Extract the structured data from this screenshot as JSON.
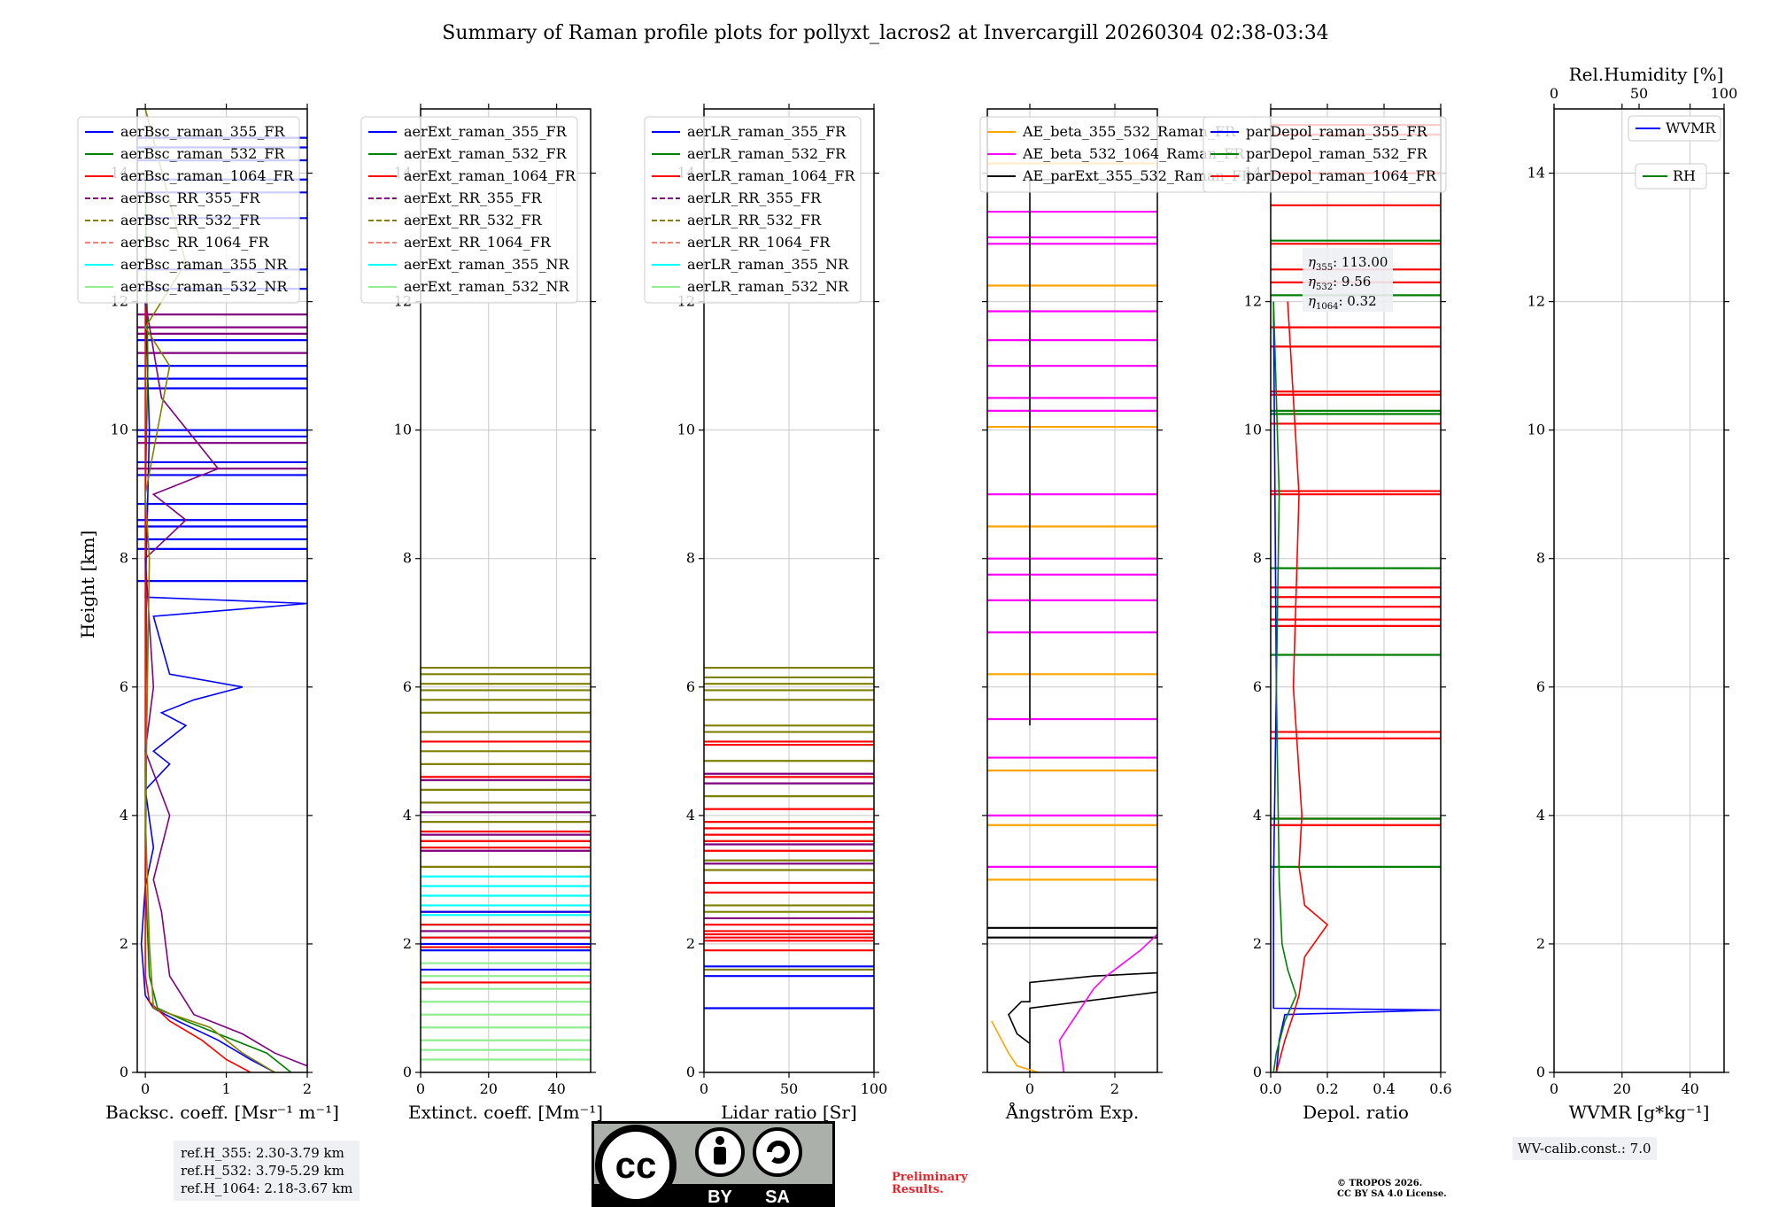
{
  "title": "Summary of Raman profile plots for pollyxt_lacros2 at Invercargill 20260304 02:38-03:34",
  "ylabel": "Height [km]",
  "ref_heights": [
    "ref.H_355: 2.30-3.79 km",
    "ref.H_532: 3.79-5.29 km",
    "ref.H_1064: 2.18-3.67 km"
  ],
  "wv_calib": "WV-calib.const.: 7.0",
  "preliminary": [
    "Preliminary",
    "Results."
  ],
  "copyright": [
    "© TROPOS 2026.",
    "CC BY SA 4.0 License."
  ],
  "license_badge": {
    "by": "BY",
    "sa": "SA",
    "cc": "cc"
  },
  "eta_labels": [
    {
      "sub": "355",
      "value": ": 113.00"
    },
    {
      "sub": "532",
      "value": ": 9.56"
    },
    {
      "sub": "1064",
      "value": ": 0.32"
    }
  ],
  "colors": {
    "blue": "#0000ff",
    "green": "#008000",
    "red": "#ff0000",
    "purple": "#800080",
    "olive": "#808000",
    "salmon": "#fa8072",
    "cyan": "#00ffff",
    "lightgreen": "#90ee90",
    "orange": "#ffa500",
    "magenta": "#ff00ff",
    "black": "#000000"
  },
  "chart_data": [
    {
      "type": "line",
      "id": "backscatter",
      "xlabel": "Backsc. coeff. [Msr⁻¹ m⁻¹]",
      "xlim": [
        -0.1,
        2
      ],
      "ylim": [
        0,
        15
      ],
      "xticks": [
        0,
        1,
        2
      ],
      "xticklabels": [
        "0",
        "1",
        "2"
      ],
      "yticks": [
        0,
        2,
        4,
        6,
        8,
        10,
        12,
        14
      ],
      "legend": [
        {
          "name": "aerBsc_raman_355_FR",
          "color": "blue",
          "dash": false
        },
        {
          "name": "aerBsc_raman_532_FR",
          "color": "green",
          "dash": false
        },
        {
          "name": "aerBsc_raman_1064_FR",
          "color": "red",
          "dash": false
        },
        {
          "name": "aerBsc_RR_355_FR",
          "color": "purple",
          "dash": true
        },
        {
          "name": "aerBsc_RR_532_FR",
          "color": "olive",
          "dash": true
        },
        {
          "name": "aerBsc_RR_1064_FR",
          "color": "salmon",
          "dash": true
        },
        {
          "name": "aerBsc_raman_355_NR",
          "color": "cyan",
          "dash": false
        },
        {
          "name": "aerBsc_raman_532_NR",
          "color": "lightgreen",
          "dash": false
        }
      ],
      "series": [
        {
          "name": "aerBsc_raman_355_FR",
          "color": "blue",
          "x": [
            1.6,
            1.3,
            0.9,
            0.4,
            0.1,
            0.0,
            -0.05,
            0.0,
            0.1,
            0.0,
            0.3,
            0.1,
            0.5,
            0.2,
            0.6,
            1.2,
            0.3,
            0.1,
            2.0,
            0.0,
            0.05,
            0.0
          ],
          "y": [
            0.0,
            0.2,
            0.5,
            0.8,
            1.0,
            1.2,
            2.0,
            2.9,
            3.5,
            4.4,
            4.8,
            5.0,
            5.4,
            5.6,
            5.8,
            6.0,
            6.2,
            7.1,
            7.3,
            7.4,
            10.0,
            12.0
          ]
        },
        {
          "name": "aerBsc_raman_532_FR",
          "color": "green",
          "x": [
            1.8,
            1.5,
            0.9,
            0.5,
            0.15,
            0.05,
            0.0,
            0.02,
            0.0,
            0.03,
            0.0
          ],
          "y": [
            0.0,
            0.3,
            0.6,
            0.8,
            1.0,
            1.5,
            3.0,
            6.0,
            9.0,
            11.0,
            14.0
          ]
        },
        {
          "name": "aerBsc_raman_1064_FR",
          "color": "red",
          "x": [
            1.3,
            1.0,
            0.7,
            0.3,
            0.05,
            0.0,
            0.0
          ],
          "y": [
            0.0,
            0.2,
            0.5,
            0.8,
            1.1,
            1.5,
            12.0
          ]
        },
        {
          "name": "aerBsc_RR_355_FR",
          "color": "purple",
          "x": [
            2.0,
            1.6,
            1.2,
            0.6,
            0.3,
            0.2,
            0.1,
            0.3,
            0.0,
            0.1,
            0.0,
            0.5,
            0.1,
            0.9,
            0.2,
            0.0
          ],
          "y": [
            0.1,
            0.3,
            0.6,
            0.9,
            1.5,
            2.5,
            3.0,
            4.0,
            5.0,
            6.0,
            8.0,
            8.6,
            9.0,
            9.4,
            10.5,
            12.0
          ]
        },
        {
          "name": "aerBsc_RR_532_FR",
          "color": "olive",
          "x": [
            1.6,
            1.2,
            0.8,
            0.1,
            0.05,
            0.0,
            0.05,
            0.0,
            0.3,
            0.0,
            0.5,
            0.0
          ],
          "y": [
            0.0,
            0.3,
            0.7,
            1.0,
            2.0,
            4.0,
            8.0,
            9.0,
            11.0,
            11.6,
            12.6,
            15.0
          ]
        }
      ],
      "spikes": [
        {
          "color": "blue",
          "y": [
            14.55,
            14.4,
            14.2,
            13.9,
            13.7,
            13.3,
            12.2,
            12.5,
            11.4,
            11.0,
            10.8,
            10.65,
            10.0,
            9.9,
            9.5,
            9.3,
            8.85,
            8.6,
            8.5,
            8.3,
            8.15,
            7.65
          ]
        },
        {
          "color": "purple",
          "y": [
            11.8,
            11.6,
            11.5,
            11.2,
            9.8,
            9.4
          ]
        }
      ],
      "ytick_text": true
    },
    {
      "type": "line",
      "id": "extinction",
      "xlabel": "Extinct. coeff. [Mm⁻¹]",
      "xlim": [
        0,
        50
      ],
      "ylim": [
        0,
        15
      ],
      "xticks": [
        0,
        20,
        40
      ],
      "xticklabels": [
        "0",
        "20",
        "40"
      ],
      "yticks": [
        0,
        2,
        4,
        6,
        8,
        10,
        12,
        14
      ],
      "legend": [
        {
          "name": "aerExt_raman_355_FR",
          "color": "blue",
          "dash": false
        },
        {
          "name": "aerExt_raman_532_FR",
          "color": "green",
          "dash": false
        },
        {
          "name": "aerExt_raman_1064_FR",
          "color": "red",
          "dash": false
        },
        {
          "name": "aerExt_RR_355_FR",
          "color": "purple",
          "dash": true
        },
        {
          "name": "aerExt_RR_532_FR",
          "color": "olive",
          "dash": true
        },
        {
          "name": "aerExt_RR_1064_FR",
          "color": "salmon",
          "dash": true
        },
        {
          "name": "aerExt_raman_355_NR",
          "color": "cyan",
          "dash": false
        },
        {
          "name": "aerExt_raman_532_NR",
          "color": "lightgreen",
          "dash": false
        }
      ],
      "series": [],
      "spikes": [
        {
          "color": "lightgreen",
          "y": [
            0.2,
            0.35,
            0.5,
            0.7,
            0.9,
            1.1,
            1.3,
            1.5,
            1.7,
            1.9
          ]
        },
        {
          "color": "cyan",
          "y": [
            2.1,
            2.3,
            2.45,
            2.6,
            2.75,
            2.9,
            3.05
          ]
        },
        {
          "color": "olive",
          "y": [
            6.3,
            6.2,
            6.05,
            5.95,
            5.8,
            5.6,
            5.3,
            5.0,
            4.8,
            4.4,
            4.2,
            3.9,
            3.6,
            3.2
          ]
        },
        {
          "color": "red",
          "y": [
            5.15,
            4.6,
            3.75,
            3.6,
            3.5,
            2.5,
            2.3,
            2.1,
            1.95,
            1.4
          ]
        },
        {
          "color": "purple",
          "y": [
            4.55,
            4.05,
            3.7,
            3.45,
            2.2
          ]
        },
        {
          "color": "blue",
          "y": [
            2.5,
            2.0,
            1.9,
            1.6
          ]
        }
      ],
      "ytick_text": true
    },
    {
      "type": "line",
      "id": "lidarratio",
      "xlabel": "Lidar ratio [Sr]",
      "xlim": [
        0,
        100
      ],
      "ylim": [
        0,
        15
      ],
      "xticks": [
        0,
        50,
        100
      ],
      "xticklabels": [
        "0",
        "50",
        "100"
      ],
      "yticks": [
        0,
        2,
        4,
        6,
        8,
        10,
        12,
        14
      ],
      "legend": [
        {
          "name": "aerLR_raman_355_FR",
          "color": "blue",
          "dash": false
        },
        {
          "name": "aerLR_raman_532_FR",
          "color": "green",
          "dash": false
        },
        {
          "name": "aerLR_raman_1064_FR",
          "color": "red",
          "dash": false
        },
        {
          "name": "aerLR_RR_355_FR",
          "color": "purple",
          "dash": true
        },
        {
          "name": "aerLR_RR_532_FR",
          "color": "olive",
          "dash": true
        },
        {
          "name": "aerLR_RR_1064_FR",
          "color": "salmon",
          "dash": true
        },
        {
          "name": "aerLR_raman_355_NR",
          "color": "cyan",
          "dash": false
        },
        {
          "name": "aerLR_raman_532_NR",
          "color": "lightgreen",
          "dash": false
        }
      ],
      "series": [],
      "spikes": [
        {
          "color": "olive",
          "y": [
            6.3,
            6.15,
            6.05,
            5.95,
            5.8,
            5.4,
            5.3,
            4.85,
            4.3,
            3.6,
            3.3,
            3.15,
            2.6,
            2.5,
            1.6
          ]
        },
        {
          "color": "red",
          "y": [
            5.15,
            5.1,
            4.6,
            4.1,
            3.9,
            3.8,
            3.7,
            3.6,
            3.45,
            2.95,
            2.8,
            2.3,
            2.2,
            2.15,
            2.1,
            2.05,
            1.9
          ]
        },
        {
          "color": "purple",
          "y": [
            4.65,
            4.5,
            3.55,
            3.25,
            2.4
          ]
        },
        {
          "color": "blue",
          "y": [
            1.65,
            1.5,
            1.0
          ]
        }
      ],
      "ytick_text": true
    },
    {
      "type": "line",
      "id": "angstrom",
      "xlabel": "Ångström Exp.",
      "xlim": [
        -1,
        3
      ],
      "ylim": [
        0,
        15
      ],
      "xticks": [
        0,
        2
      ],
      "xticklabels": [
        "0",
        "2"
      ],
      "yticks": [
        0,
        2,
        4,
        6,
        8,
        10,
        12,
        14
      ],
      "legend": [
        {
          "name": "AE_beta_355_532_Raman_FR",
          "color": "orange",
          "dash": false
        },
        {
          "name": "AE_beta_532_1064_Raman_FR",
          "color": "magenta",
          "dash": false
        },
        {
          "name": "AE_parExt_355_532_Raman_FR",
          "color": "black",
          "dash": false
        }
      ],
      "series": [
        {
          "name": "AE_parExt_355_532_Raman_FR",
          "color": "black",
          "x": [
            0.0,
            0.0,
            -0.3,
            -0.5,
            -0.2,
            0.0,
            0.0,
            1.5,
            3.0,
            3.0,
            0.0,
            0.0
          ],
          "y": [
            0.0,
            0.45,
            0.6,
            0.9,
            1.1,
            1.1,
            1.4,
            1.5,
            1.55,
            1.25,
            1.0,
            0.45
          ]
        },
        {
          "name": "AE_parExt_355_532_Raman_FR_upper",
          "color": "black",
          "x": [
            0.0,
            0.0,
            3.0
          ],
          "y": [
            5.4,
            13.9,
            13.9
          ]
        },
        {
          "name": "AE_beta_532_1064_Raman_FR",
          "color": "magenta",
          "x": [
            0.8,
            0.7,
            1.2,
            1.5,
            1.8,
            2.2,
            2.6,
            3.0
          ],
          "y": [
            0.0,
            0.5,
            1.0,
            1.3,
            1.5,
            1.7,
            1.9,
            2.15
          ]
        },
        {
          "name": "AE_beta_355_532_Raman_FR",
          "color": "orange",
          "x": [
            0.2,
            -0.3,
            -0.5,
            -0.9
          ],
          "y": [
            0.0,
            0.1,
            0.3,
            0.8
          ]
        }
      ],
      "spikes": [
        {
          "color": "magenta",
          "y": [
            3.2,
            4.0,
            4.9,
            5.5,
            6.85,
            7.35,
            7.75,
            8.0,
            9.0,
            10.3,
            10.5,
            11.0,
            11.4,
            11.85,
            12.9,
            13.0,
            13.4
          ]
        },
        {
          "color": "orange",
          "y": [
            3.0,
            3.85,
            4.7,
            6.2,
            8.5,
            10.05,
            12.25,
            14.15
          ]
        },
        {
          "color": "black",
          "y": [
            2.25,
            2.1
          ]
        }
      ],
      "ytick_text": false
    },
    {
      "type": "line",
      "id": "depol",
      "xlabel": "Depol. ratio",
      "xlim": [
        0,
        0.6
      ],
      "ylim": [
        0,
        15
      ],
      "xticks": [
        0,
        0.2,
        0.4,
        0.6
      ],
      "xticklabels": [
        "0.0",
        "0.2",
        "0.4",
        "0.6"
      ],
      "yticks": [
        0,
        2,
        4,
        6,
        8,
        10,
        12,
        14
      ],
      "legend": [
        {
          "name": "parDepol_raman_355_FR",
          "color": "blue",
          "dash": false
        },
        {
          "name": "parDepol_raman_532_FR",
          "color": "green",
          "dash": false
        },
        {
          "name": "parDepol_raman_1064_FR",
          "color": "red",
          "dash": false
        }
      ],
      "series": [
        {
          "name": "parDepol_raman_355_FR",
          "color": "blue",
          "x": [
            0.02,
            0.03,
            0.05,
            0.6,
            0.01,
            0.01,
            0.02,
            0.01
          ],
          "y": [
            0.0,
            0.5,
            0.9,
            0.97,
            1.0,
            3.0,
            6.0,
            12.0
          ]
        },
        {
          "name": "parDepol_raman_532_FR",
          "color": "green",
          "x": [
            0.01,
            0.02,
            0.05,
            0.09,
            0.06,
            0.04,
            0.03,
            0.02,
            0.03,
            0.01
          ],
          "y": [
            0.0,
            0.3,
            0.8,
            1.2,
            1.6,
            2.0,
            3.0,
            6.0,
            9.0,
            12.0
          ]
        },
        {
          "name": "parDepol_raman_1064_FR",
          "color": "red",
          "x": [
            0.02,
            0.05,
            0.08,
            0.1,
            0.12,
            0.2,
            0.12,
            0.1,
            0.11,
            0.08,
            0.1,
            0.06
          ],
          "y": [
            0.0,
            0.5,
            0.9,
            1.2,
            1.8,
            2.3,
            2.6,
            3.2,
            4.0,
            6.0,
            9.0,
            12.0
          ]
        }
      ],
      "spikes": [
        {
          "color": "red",
          "y": [
            3.85,
            3.95,
            5.2,
            5.3,
            6.95,
            7.05,
            7.25,
            7.4,
            7.55,
            9.0,
            9.05,
            10.1,
            10.55,
            10.6,
            11.3,
            11.6,
            12.3,
            12.5,
            12.9,
            13.5,
            14.0,
            14.6,
            14.75
          ]
        },
        {
          "color": "green",
          "y": [
            3.2,
            3.95,
            6.5,
            7.85,
            10.25,
            10.3,
            12.1,
            12.95
          ]
        }
      ],
      "ytick_text": true
    },
    {
      "type": "line",
      "id": "wvmr",
      "xlabel": "WVMR [g*kg⁻¹]",
      "xlim": [
        0,
        50
      ],
      "ylim": [
        0,
        15
      ],
      "xticks": [
        0,
        20,
        40
      ],
      "xticklabels": [
        "0",
        "20",
        "40"
      ],
      "yticks": [
        0,
        2,
        4,
        6,
        8,
        10,
        12,
        14
      ],
      "top_xlabel": "Rel.Humidity [%]",
      "top_xticks": [
        0,
        50,
        100
      ],
      "top_xticklabels": [
        "0",
        "50",
        "100"
      ],
      "legend": [
        {
          "name": "WVMR",
          "color": "blue",
          "dash": false
        },
        {
          "name": "RH",
          "color": "green",
          "dash": false
        }
      ],
      "series": [],
      "spikes": [],
      "ytick_text": true
    }
  ]
}
